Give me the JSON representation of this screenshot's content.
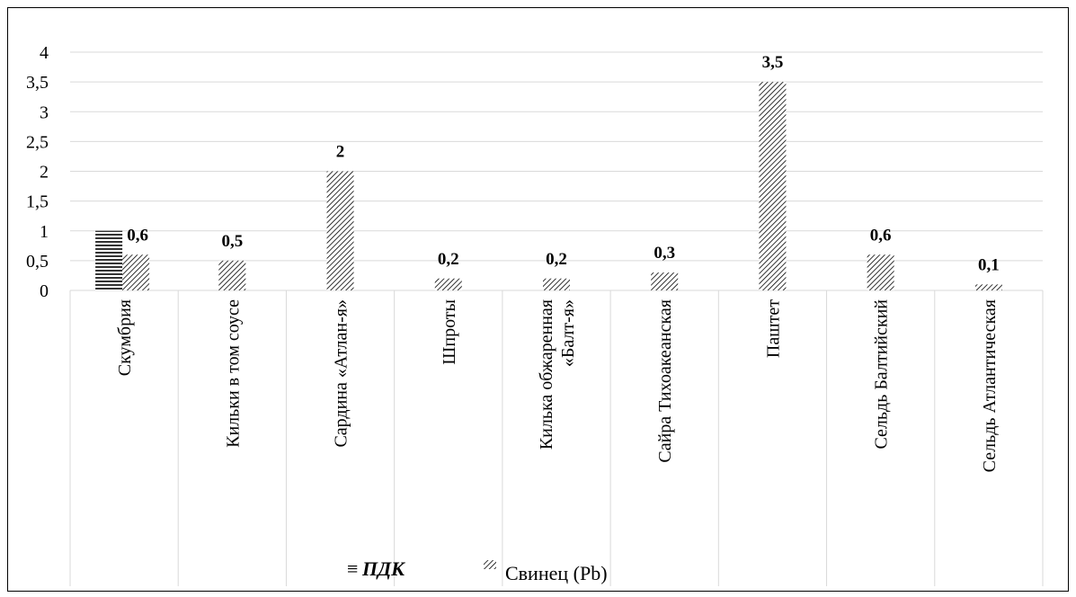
{
  "chart_data": {
    "type": "bar",
    "categories": [
      "Скумбрия",
      "Кильки в том соусе",
      "Сардина «Атлан-я»",
      "Шпроты",
      [
        "Килька обжаренная",
        "«Балт-я»"
      ],
      "Сайра Тихоакеанская",
      "Паштет",
      "Сельдь Балтийский",
      "Сельдь Атлантическая"
    ],
    "series": [
      {
        "name": "ПДК",
        "values": [
          1,
          null,
          null,
          null,
          null,
          null,
          null,
          null,
          null
        ],
        "pattern": "horizontal-lines"
      },
      {
        "name": "Свинец (Pb)",
        "values": [
          0.6,
          0.5,
          2,
          0.2,
          0.2,
          0.3,
          3.5,
          0.6,
          0.1
        ],
        "pattern": "diagonal-lines"
      }
    ],
    "data_labels": [
      "0,6",
      "0,5",
      "2",
      "0,2",
      "0,2",
      "0,3",
      "3,5",
      "0,6",
      "0,1"
    ],
    "y_ticks": [
      "0",
      "0,5",
      "1",
      "1,5",
      "2",
      "2,5",
      "3",
      "3,5",
      "4"
    ],
    "ylim": [
      0,
      4
    ],
    "ystep": 0.5,
    "grid": true,
    "legend_position": "bottom",
    "legend": {
      "pdk_marker": "≡",
      "pb_marker": "///"
    },
    "colors": {
      "bar_stroke": "#000000",
      "grid": "#d9d9d9"
    }
  }
}
